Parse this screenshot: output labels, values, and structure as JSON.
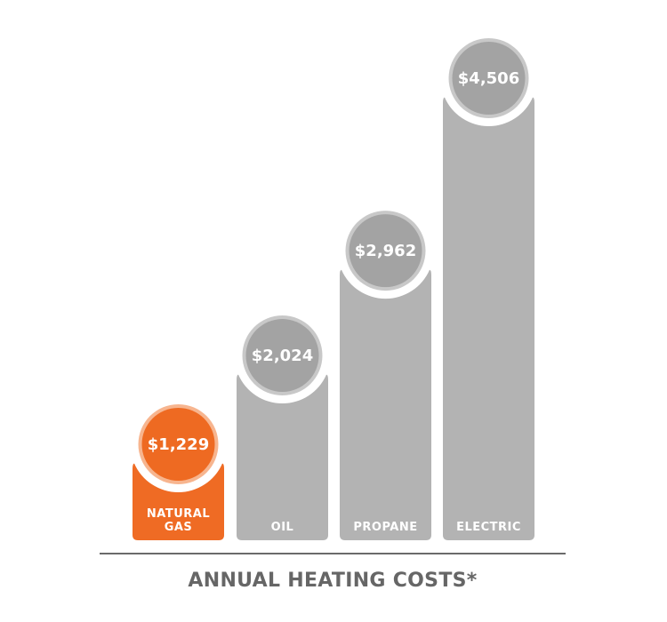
{
  "chart_data": {
    "type": "bar",
    "title": "ANNUAL HEATING COSTS*",
    "categories": [
      [
        "NATURAL",
        "GAS"
      ],
      [
        "OIL"
      ],
      [
        "PROPANE"
      ],
      [
        "ELECTRIC"
      ]
    ],
    "values": [
      1229,
      2024,
      2962,
      4506
    ],
    "value_labels": [
      "$1,229",
      "$2,024",
      "$2,962",
      "$4,506"
    ],
    "ylim": [
      0,
      4506
    ],
    "grid": false,
    "colors": {
      "highlight": "#EF6B24",
      "highlight_circle": "#EE6A22",
      "highlight_ring": "#F7B58F",
      "bar": "#B3B3B3",
      "circle": "#A3A3A3",
      "circle_ring": "#C8C8C8",
      "baseline": "#6B6B6B",
      "title": "#666666"
    },
    "highlight_index": 0
  }
}
